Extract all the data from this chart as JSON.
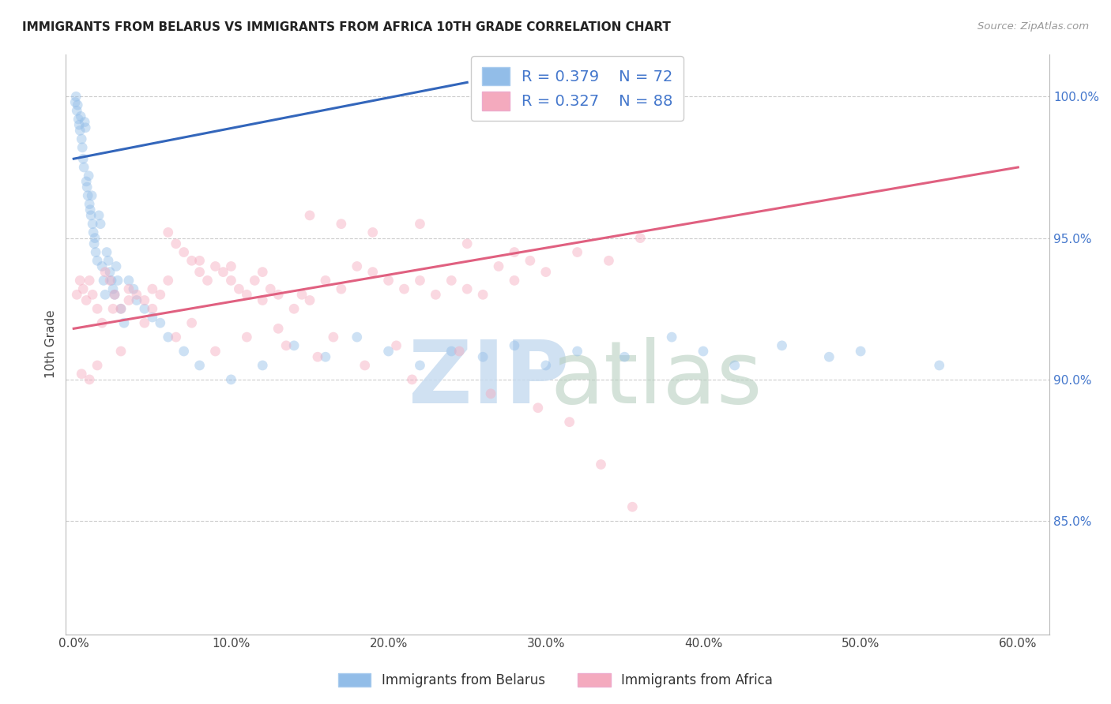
{
  "title": "IMMIGRANTS FROM BELARUS VS IMMIGRANTS FROM AFRICA 10TH GRADE CORRELATION CHART",
  "source": "Source: ZipAtlas.com",
  "xlabel_ticks": [
    "0.0%",
    "10.0%",
    "20.0%",
    "30.0%",
    "40.0%",
    "50.0%",
    "60.0%"
  ],
  "xlabel_vals": [
    0.0,
    10.0,
    20.0,
    30.0,
    40.0,
    50.0,
    60.0
  ],
  "ylabel": "10th Grade",
  "ylabel_right_ticks": [
    "85.0%",
    "90.0%",
    "95.0%",
    "100.0%"
  ],
  "ylabel_right_vals": [
    85.0,
    90.0,
    95.0,
    100.0
  ],
  "xlim": [
    -0.5,
    62.0
  ],
  "ylim": [
    81.0,
    101.5
  ],
  "legend_label1": "Immigrants from Belarus",
  "legend_label2": "Immigrants from Africa",
  "R1": "0.379",
  "N1": "72",
  "R2": "0.327",
  "N2": "88",
  "blue_color": "#92BDE8",
  "pink_color": "#F4AABE",
  "blue_line_color": "#3366BB",
  "pink_line_color": "#E06080",
  "marker_size": 85,
  "marker_alpha": 0.45,
  "background_color": "#FFFFFF",
  "grid_color": "#CCCCCC",
  "blue_scatter_x": [
    0.1,
    0.15,
    0.2,
    0.25,
    0.3,
    0.35,
    0.4,
    0.45,
    0.5,
    0.55,
    0.6,
    0.65,
    0.7,
    0.75,
    0.8,
    0.85,
    0.9,
    0.95,
    1.0,
    1.05,
    1.1,
    1.15,
    1.2,
    1.25,
    1.3,
    1.35,
    1.4,
    1.5,
    1.6,
    1.7,
    1.8,
    1.9,
    2.0,
    2.1,
    2.2,
    2.3,
    2.4,
    2.5,
    2.6,
    2.7,
    2.8,
    3.0,
    3.2,
    3.5,
    3.8,
    4.0,
    4.5,
    5.0,
    5.5,
    6.0,
    7.0,
    8.0,
    10.0,
    12.0,
    14.0,
    16.0,
    18.0,
    20.0,
    22.0,
    24.0,
    26.0,
    28.0,
    30.0,
    32.0,
    35.0,
    38.0,
    40.0,
    42.0,
    45.0,
    48.0,
    50.0,
    55.0
  ],
  "blue_scatter_y": [
    99.8,
    100.0,
    99.5,
    99.7,
    99.2,
    99.0,
    98.8,
    99.3,
    98.5,
    98.2,
    97.8,
    97.5,
    99.1,
    98.9,
    97.0,
    96.8,
    96.5,
    97.2,
    96.2,
    96.0,
    95.8,
    96.5,
    95.5,
    95.2,
    94.8,
    95.0,
    94.5,
    94.2,
    95.8,
    95.5,
    94.0,
    93.5,
    93.0,
    94.5,
    94.2,
    93.8,
    93.5,
    93.2,
    93.0,
    94.0,
    93.5,
    92.5,
    92.0,
    93.5,
    93.2,
    92.8,
    92.5,
    92.2,
    92.0,
    91.5,
    91.0,
    90.5,
    90.0,
    90.5,
    91.2,
    90.8,
    91.5,
    91.0,
    90.5,
    91.0,
    90.8,
    91.2,
    90.5,
    91.0,
    90.8,
    91.5,
    91.0,
    90.5,
    91.2,
    90.8,
    91.0,
    90.5
  ],
  "pink_scatter_x": [
    0.2,
    0.4,
    0.6,
    0.8,
    1.0,
    1.2,
    1.5,
    1.8,
    2.0,
    2.3,
    2.6,
    3.0,
    3.5,
    4.0,
    4.5,
    5.0,
    5.5,
    6.0,
    6.5,
    7.0,
    7.5,
    8.0,
    8.5,
    9.0,
    9.5,
    10.0,
    10.5,
    11.0,
    11.5,
    12.0,
    12.5,
    13.0,
    14.0,
    14.5,
    15.0,
    16.0,
    17.0,
    18.0,
    19.0,
    20.0,
    21.0,
    22.0,
    23.0,
    24.0,
    25.0,
    26.0,
    27.0,
    28.0,
    29.0,
    30.0,
    32.0,
    34.0,
    36.0,
    22.0,
    15.0,
    17.0,
    19.0,
    25.0,
    28.0,
    8.0,
    10.0,
    12.0,
    6.0,
    5.0,
    3.5,
    2.5,
    7.5,
    13.0,
    16.5,
    20.5,
    24.5,
    1.5,
    0.5,
    1.0,
    3.0,
    4.5,
    6.5,
    9.0,
    11.0,
    13.5,
    15.5,
    18.5,
    21.5,
    26.5,
    29.5,
    31.5,
    33.5,
    35.5
  ],
  "pink_scatter_y": [
    93.0,
    93.5,
    93.2,
    92.8,
    93.5,
    93.0,
    92.5,
    92.0,
    93.8,
    93.5,
    93.0,
    92.5,
    93.2,
    93.0,
    92.8,
    92.5,
    93.0,
    95.2,
    94.8,
    94.5,
    94.2,
    93.8,
    93.5,
    94.0,
    93.8,
    93.5,
    93.2,
    93.0,
    93.5,
    92.8,
    93.2,
    93.0,
    92.5,
    93.0,
    92.8,
    93.5,
    93.2,
    94.0,
    93.8,
    93.5,
    93.2,
    93.5,
    93.0,
    93.5,
    93.2,
    93.0,
    94.0,
    93.5,
    94.2,
    93.8,
    94.5,
    94.2,
    95.0,
    95.5,
    95.8,
    95.5,
    95.2,
    94.8,
    94.5,
    94.2,
    94.0,
    93.8,
    93.5,
    93.2,
    92.8,
    92.5,
    92.0,
    91.8,
    91.5,
    91.2,
    91.0,
    90.5,
    90.2,
    90.0,
    91.0,
    92.0,
    91.5,
    91.0,
    91.5,
    91.2,
    90.8,
    90.5,
    90.0,
    89.5,
    89.0,
    88.5,
    87.0,
    85.5
  ],
  "blue_line_x": [
    0.0,
    25.0
  ],
  "blue_line_y": [
    97.8,
    100.5
  ],
  "pink_line_x": [
    0.0,
    60.0
  ],
  "pink_line_y": [
    91.8,
    97.5
  ]
}
